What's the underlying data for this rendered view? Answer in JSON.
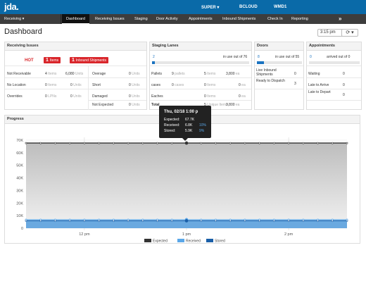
{
  "header": {
    "logo": "jda.",
    "user": "SUPER ▾",
    "facility": "BCLOUD",
    "warehouse": "WMD1"
  },
  "nav": {
    "module": "Receiving ▾",
    "tabs": [
      "Dashboard",
      "Receiving Issues",
      "Staging",
      "Door Activity",
      "Appointments",
      "Inbound Shipments",
      "Check In",
      "Reporting"
    ],
    "expand": "»"
  },
  "page": {
    "title": "Dashboard",
    "time": "3:15 pm",
    "refresh": "⟳ ▾"
  },
  "receiving_issues": {
    "title": "Receiving Issues",
    "hot": "HOT",
    "hot_items_count": "1",
    "hot_items_label": "Items",
    "hot_shipments_count": "1",
    "hot_shipments_label": "Inbound Shipments",
    "rows": [
      {
        "label": "Not Receivable",
        "count": "4",
        "count_unit": "Items",
        "units": "6,080",
        "unit_label": "Units",
        "label2": "Overage",
        "count2": "0",
        "unit_label2": "Units"
      },
      {
        "label": "No Location",
        "count": "0",
        "count_unit": "Items",
        "units": "0",
        "unit_label": "Units",
        "label2": "Short",
        "count2": "0",
        "unit_label2": "Units"
      },
      {
        "label": "Overrides",
        "count": "0",
        "count_unit": "LPNs",
        "units": "0",
        "unit_label": "Units",
        "label2": "Damaged",
        "count2": "0",
        "unit_label2": "Units"
      },
      {
        "label": "",
        "count": "",
        "count_unit": "",
        "units": "",
        "unit_label": "",
        "label2": "Not Expected",
        "count2": "0",
        "unit_label2": "Units"
      }
    ]
  },
  "staging": {
    "title": "Staging Lanes",
    "in_use": "2",
    "in_use_text": "in use out of 76",
    "in_use_fraction": 0.03,
    "rows": [
      {
        "label": "Pallets",
        "count": "9",
        "count_unit": "pallets",
        "count2": "5",
        "count2_unit": "Items",
        "units": "3,800",
        "unit_label": "ea"
      },
      {
        "label": "cases",
        "count": "0",
        "count_unit": "cases",
        "count2": "0",
        "count2_unit": "Items",
        "units": "0",
        "unit_label": "ea"
      },
      {
        "label": "Eaches",
        "count": "",
        "count_unit": "",
        "count2": "0",
        "count2_unit": "Items",
        "units": "0",
        "unit_label": "ea"
      },
      {
        "label": "Total",
        "count": "",
        "count_unit": "",
        "count2": "5",
        "count2_unit": "Unique Items",
        "units": "3,800",
        "unit_label": "ea"
      }
    ]
  },
  "doors": {
    "title": "Doors",
    "in_use": "8",
    "in_use_text": "in use out of 55",
    "in_use_fraction": 0.15,
    "rows": [
      {
        "label": "Live Inbound Shipments",
        "value": "0"
      },
      {
        "label": "Ready to Dispatch",
        "value": "3"
      }
    ]
  },
  "appointments": {
    "title": "Appointments",
    "arrived": "0",
    "arrived_text": "arrived out of 0",
    "rows": [
      {
        "label": "Waiting",
        "value": "0"
      },
      {
        "label": "Late to Arrive",
        "value": "0"
      },
      {
        "label": "Late to Depart",
        "value": "0"
      }
    ]
  },
  "progress": {
    "title": "Progress",
    "tooltip": {
      "title": "Thu, 02/18 1:00 p",
      "rows": [
        {
          "label": "Expected:",
          "value": "67.7K",
          "pct": ""
        },
        {
          "label": "Received:",
          "value": "6.8K",
          "pct": "10%"
        },
        {
          "label": "Stored:",
          "value": "5.9K",
          "pct": "9%"
        }
      ]
    }
  },
  "chart_data": {
    "type": "area",
    "title": "",
    "xlabel": "",
    "ylabel": "",
    "y_ticks": [
      "0",
      "10K",
      "20K",
      "30K",
      "40K",
      "50K",
      "60K",
      "70K"
    ],
    "x_ticks": [
      "12 pm",
      "1 pm",
      "2 pm"
    ],
    "ylim": [
      0,
      70000
    ],
    "x_points": 23,
    "series": [
      {
        "name": "Expected",
        "color": "#333333",
        "values": [
          67700,
          67700,
          67700,
          67700,
          67700,
          67700,
          67700,
          67700,
          67700,
          67700,
          67700,
          67700,
          67700,
          67700,
          67700,
          67700,
          67700,
          67700,
          67700,
          67700,
          67700,
          67700,
          67700
        ]
      },
      {
        "name": "Received",
        "color": "#5aa7e8",
        "values": [
          6800,
          6800,
          6800,
          6800,
          6800,
          6800,
          6800,
          6800,
          6800,
          6800,
          6800,
          6800,
          6800,
          6800,
          6800,
          6800,
          6800,
          6800,
          6800,
          6800,
          6800,
          6800,
          6800
        ]
      },
      {
        "name": "Stored",
        "color": "#1a5fa8",
        "values": [
          5900,
          5900,
          5900,
          5900,
          5900,
          5900,
          5900,
          5900,
          5900,
          5900,
          5900,
          5900,
          5900,
          5900,
          5900,
          5900,
          5900,
          5900,
          5900,
          5900,
          5900,
          5900,
          5900
        ]
      }
    ],
    "highlight_index": 11,
    "legend_position": "bottom",
    "grid": true
  }
}
